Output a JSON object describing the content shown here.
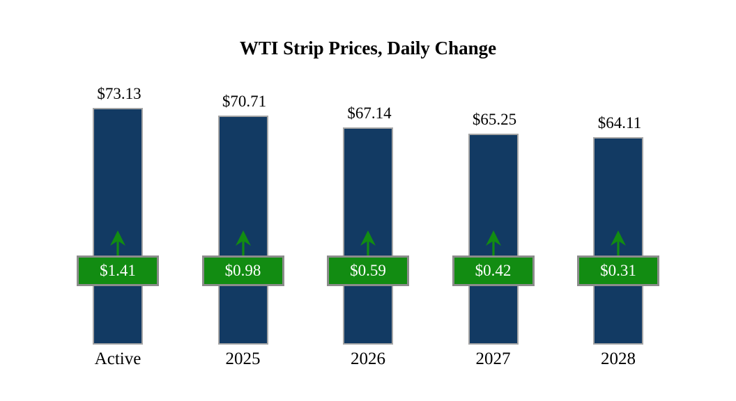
{
  "chart_data": {
    "type": "bar",
    "title": "WTI Strip Prices, Daily Change",
    "categories": [
      "Active",
      "2025",
      "2026",
      "2027",
      "2028"
    ],
    "series": [
      {
        "name": "Strip Price",
        "values": [
          73.13,
          70.71,
          67.14,
          65.25,
          64.11
        ],
        "labels": [
          "$73.13",
          "$70.71",
          "$67.14",
          "$65.25",
          "$64.11"
        ]
      },
      {
        "name": "Daily Change",
        "values": [
          1.41,
          0.98,
          0.59,
          0.42,
          0.31
        ],
        "labels": [
          "$1.41",
          "$0.98",
          "$0.59",
          "$0.42",
          "$0.31"
        ]
      }
    ],
    "ylim": [
      0,
      73.13
    ],
    "xlabel": "",
    "ylabel": "",
    "grid": false,
    "legend_position": "none",
    "direction_indicator": "up-arrow",
    "colors": {
      "bar_fill": "#123a63",
      "bar_border": "#a6a6a6",
      "change_fill": "#128c12",
      "change_border": "#8c8c8c",
      "change_text": "#ffffff",
      "arrow": "#128c12",
      "text": "#000000",
      "background": "#ffffff"
    }
  }
}
